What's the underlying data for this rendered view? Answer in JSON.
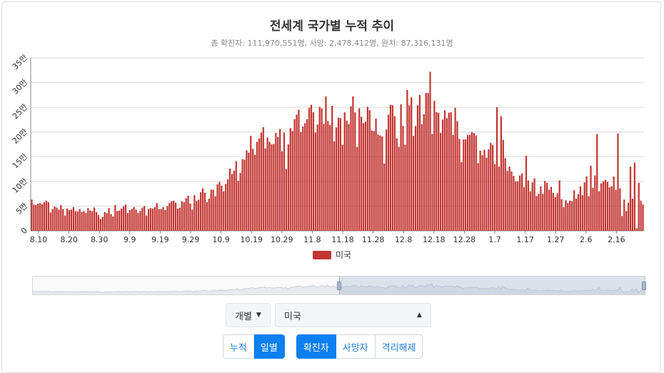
{
  "chart_data": {
    "type": "bar",
    "title": "전세계 국가별 누적 추이",
    "subtitle": "총 확진자: 111,970,551명, 사망: 2,478,412명, 완치: 87,316,131명",
    "series": [
      {
        "name": "미국",
        "color": "#c23531",
        "values": [
          63000,
          53000,
          52000,
          55000,
          56000,
          54000,
          58000,
          61000,
          58000,
          37000,
          44000,
          49000,
          47000,
          43000,
          52000,
          44000,
          31000,
          45000,
          42000,
          43000,
          48000,
          40000,
          39000,
          44000,
          38000,
          40000,
          36000,
          46000,
          41000,
          40000,
          47000,
          38000,
          32000,
          24000,
          28000,
          38000,
          36000,
          46000,
          34000,
          29000,
          52000,
          40000,
          41000,
          45000,
          49000,
          53000,
          36000,
          42000,
          44000,
          48000,
          43000,
          36000,
          40000,
          47000,
          50000,
          31000,
          44000,
          46000,
          45000,
          48000,
          56000,
          44000,
          44000,
          48000,
          42000,
          50000,
          56000,
          60000,
          61000,
          57000,
          45000,
          47000,
          60000,
          58000,
          66000,
          71000,
          55000,
          43000,
          72000,
          60000,
          63000,
          78000,
          86000,
          77000,
          58000,
          65000,
          83000,
          83000,
          70000,
          94000,
          99000,
          91000,
          80000,
          95000,
          104000,
          126000,
          115000,
          122000,
          141000,
          101000,
          117000,
          145000,
          144000,
          163000,
          158000,
          192000,
          166000,
          154000,
          180000,
          187000,
          199000,
          210000,
          167000,
          189000,
          180000,
          175000,
          176000,
          198000,
          190000,
          206000,
          161000,
          199000,
          125000,
          175000,
          208000,
          202000,
          226000,
          235000,
          245000,
          200000,
          211000,
          218000,
          226000,
          249000,
          255000,
          240000,
          199000,
          215000,
          251000,
          248000,
          216000,
          272000,
          222000,
          214000,
          253000,
          181000,
          209000,
          229000,
          228000,
          174000,
          240000,
          223000,
          216000,
          252000,
          272000,
          240000,
          170000,
          248000,
          231000,
          218000,
          221000,
          251000,
          244000,
          203000,
          202000,
          227000,
          195000,
          193000,
          191000,
          136000,
          205000,
          235000,
          255000,
          254000,
          232000,
          187000,
          170000,
          256000,
          212000,
          174000,
          285000,
          254000,
          270000,
          192000,
          212000,
          254000,
          275000,
          216000,
          236000,
          279000,
          279000,
          322000,
          196000,
          263000,
          240000,
          239000,
          198000,
          225000,
          244000,
          228000,
          239000,
          240000,
          194000,
          249000,
          222000,
          186000,
          139000,
          185000,
          185000,
          194000,
          194000,
          200000,
          198000,
          193000,
          137000,
          162000,
          153000,
          164000,
          148000,
          165000,
          178000,
          174000,
          135000,
          250000,
          130000,
          232000,
          184000,
          147000,
          121000,
          130000,
          120000,
          111000,
          100000,
          100000,
          112000,
          116000,
          88000,
          152000,
          102000,
          80000,
          98000,
          106000,
          70000,
          75000,
          90000,
          75000,
          101000,
          97000,
          83000,
          89000,
          77000,
          68000,
          76000,
          102000,
          64000,
          48000,
          62000,
          56000,
          61000,
          60000,
          82000,
          65000,
          74000,
          90000,
          72000,
          98000,
          110000,
          70000,
          132000,
          87000,
          112000,
          196000,
          80000,
          96000,
          100000,
          103000,
          99000,
          88000,
          90000,
          110000,
          83000,
          197000,
          86000,
          30000,
          63000,
          40000,
          57000,
          130000,
          65000,
          138000,
          5000,
          97000,
          61000,
          53000
        ]
      }
    ],
    "x_tick_labels": [
      "8.10",
      "8.20",
      "8.30",
      "9.9",
      "9.19",
      "9.29",
      "10.9",
      "10.19",
      "10.29",
      "11.8",
      "11.18",
      "11.28",
      "12.8",
      "12.18",
      "12.28",
      "1.7",
      "1.17",
      "1.27",
      "2.6",
      "2.16"
    ],
    "y_tick_labels": [
      "0",
      "5만",
      "10만",
      "15만",
      "20만",
      "25만",
      "30만",
      "35만"
    ],
    "ylim": [
      0,
      350000
    ],
    "grid": true,
    "legend_position": "bottom-center"
  },
  "controls": {
    "mode_select": {
      "label": "개별"
    },
    "country_select": {
      "value": "미국"
    },
    "aggregation_tabs": [
      {
        "label": "누적",
        "active": false
      },
      {
        "label": "일별",
        "active": true
      }
    ],
    "metric_tabs": [
      {
        "label": "확진자",
        "active": true
      },
      {
        "label": "사망자",
        "active": false
      },
      {
        "label": "격리해제",
        "active": false
      }
    ]
  },
  "navigator": {
    "selected_start_fraction": 0.5,
    "selected_end_fraction": 1.0
  }
}
